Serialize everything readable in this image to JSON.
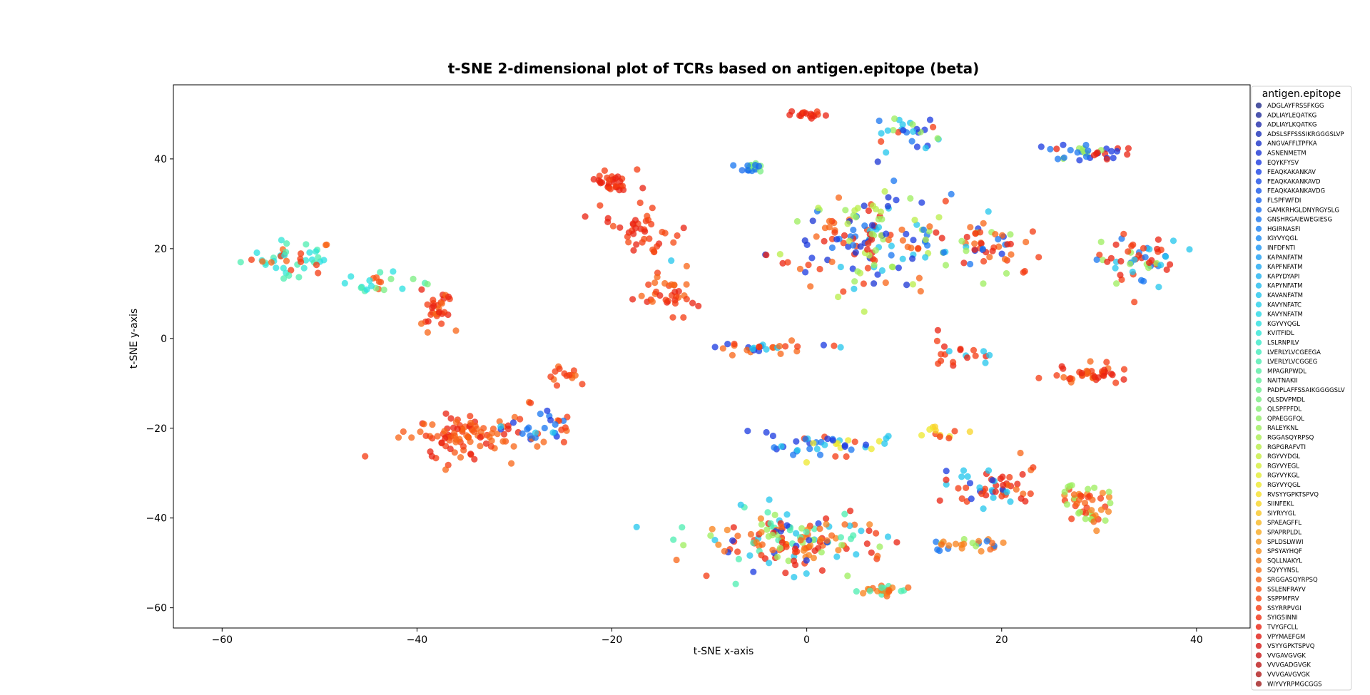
{
  "chart_data": {
    "type": "scatter",
    "title": "t-SNE 2-dimensional plot of TCRs based on antigen.epitope (beta)",
    "xlabel": "t-SNE x-axis",
    "ylabel": "t-SNE y-axis",
    "xlim": [
      -65,
      45.5
    ],
    "ylim": [
      -64.5,
      56.5
    ],
    "xticks": [
      -60,
      -40,
      -20,
      0,
      20,
      40
    ],
    "yticks": [
      -60,
      -40,
      -20,
      0,
      20,
      40
    ],
    "xtick_labels": [
      "−60",
      "−40",
      "−20",
      "0",
      "20",
      "40"
    ],
    "ytick_labels": [
      "−60",
      "−40",
      "−20",
      "0",
      "20",
      "40"
    ],
    "grid": false,
    "legend": {
      "title": "antigen.epitope",
      "placement": "outside-right",
      "entries": [
        {
          "label": "ADGLAYFRSSFKGG",
          "color": "#1f2a8a"
        },
        {
          "label": "ADLIAYLEQATKG",
          "color": "#1f2a9a"
        },
        {
          "label": "ADLIAYLKQATKG",
          "color": "#1f2aaa"
        },
        {
          "label": "ADSLSFFSSSIKRGGGSLVP",
          "color": "#1a2fb8"
        },
        {
          "label": "ANGVAFFLTPFKA",
          "color": "#1a32c8"
        },
        {
          "label": "ASNENMETM",
          "color": "#1a34d4"
        },
        {
          "label": "EQYKFYSV",
          "color": "#1a3ae0"
        },
        {
          "label": "FEAQKAKANKAV",
          "color": "#1a44e6"
        },
        {
          "label": "FEAQKAKANKAVD",
          "color": "#1a4ee8"
        },
        {
          "label": "FEAQKAKANKAVDG",
          "color": "#1858ea"
        },
        {
          "label": "FLSPFWFDI",
          "color": "#1862ec"
        },
        {
          "label": "GAMKRHGLDNYRGYSLG",
          "color": "#186cee"
        },
        {
          "label": "GNSHRGAIEWEGIESG",
          "color": "#1876f0"
        },
        {
          "label": "HGIRNASFI",
          "color": "#1880f2"
        },
        {
          "label": "IGYVYQGL",
          "color": "#188af4"
        },
        {
          "label": "INFDFNTI",
          "color": "#1894f4"
        },
        {
          "label": "KAPANFATM",
          "color": "#1a9ef4"
        },
        {
          "label": "KAPFNFATM",
          "color": "#1ca8f2"
        },
        {
          "label": "KAPYDYAPI",
          "color": "#1eb2f0"
        },
        {
          "label": "KAPYNFATM",
          "color": "#20bcee"
        },
        {
          "label": "KAVANFATM",
          "color": "#22c6ec"
        },
        {
          "label": "KAVYNFATC",
          "color": "#24d0ea"
        },
        {
          "label": "KAVYNFATM",
          "color": "#26d8e6"
        },
        {
          "label": "KGYVYQGL",
          "color": "#2ae0e0"
        },
        {
          "label": "KVITFIDL",
          "color": "#30e6d6"
        },
        {
          "label": "LSLRNPILV",
          "color": "#38eac8"
        },
        {
          "label": "LVERLYLVCGEEGA",
          "color": "#42ecbc"
        },
        {
          "label": "LVERLYLVCGGEG",
          "color": "#4ceeb0"
        },
        {
          "label": "MPAGRPWDL",
          "color": "#56eea4"
        },
        {
          "label": "NAITNAKII",
          "color": "#60ee98"
        },
        {
          "label": "PADPLAFFSSAIKGGGGSLV",
          "color": "#6cee8c"
        },
        {
          "label": "QLSDVPMDL",
          "color": "#78ee80"
        },
        {
          "label": "QLSPFPFDL",
          "color": "#84ee74"
        },
        {
          "label": "QPAEGGFQL",
          "color": "#90ee68"
        },
        {
          "label": "RALEYKNL",
          "color": "#9cee5c"
        },
        {
          "label": "RGGASQYRPSQ",
          "color": "#aaee52"
        },
        {
          "label": "RGPGRAFVTI",
          "color": "#b8ee48"
        },
        {
          "label": "RGYVYDGL",
          "color": "#c6ee40"
        },
        {
          "label": "RGYVYEGL",
          "color": "#d4ee38"
        },
        {
          "label": "RGYVYKGL",
          "color": "#e2ec32"
        },
        {
          "label": "RGYVYQGL",
          "color": "#eee82c"
        },
        {
          "label": "RVSYYGPKTSPVQ",
          "color": "#f6e028"
        },
        {
          "label": "SIINFEKL",
          "color": "#f8d426"
        },
        {
          "label": "SIYRYYGL",
          "color": "#f8c624"
        },
        {
          "label": "SPAEAGFFL",
          "color": "#f8b822"
        },
        {
          "label": "SPAPRPLDL",
          "color": "#f8aa20"
        },
        {
          "label": "SPLDSLWWI",
          "color": "#f89c1e"
        },
        {
          "label": "SPSYAYHQF",
          "color": "#f88e1c"
        },
        {
          "label": "SQLLNAKYL",
          "color": "#f8801a"
        },
        {
          "label": "SQYYYNSL",
          "color": "#f87218"
        },
        {
          "label": "SRGGASQYRPSQ",
          "color": "#f86416"
        },
        {
          "label": "SSLENFRAYV",
          "color": "#f85614"
        },
        {
          "label": "SSPPMFRV",
          "color": "#f64812"
        },
        {
          "label": "SSYRRPVGI",
          "color": "#f43a10"
        },
        {
          "label": "SYIGSINNI",
          "color": "#f02e10"
        },
        {
          "label": "TVYGFCLL",
          "color": "#ea2210"
        },
        {
          "label": "VPYMAEFGM",
          "color": "#e01a12"
        },
        {
          "label": "VSYYGPKTSPVQ",
          "color": "#d41614"
        },
        {
          "label": "VVGAVGVGK",
          "color": "#c81616"
        },
        {
          "label": "VVVGADGVGK",
          "color": "#bc1818"
        },
        {
          "label": "VVVGAVGVGK",
          "color": "#b01a1a"
        },
        {
          "label": "WIYVYRPMGCGGS",
          "color": "#a01c1c"
        }
      ]
    },
    "clusters": [
      {
        "center": [
          -53,
          18
        ],
        "spread": [
          4.5,
          3.5
        ],
        "n": 45,
        "colors": [
          "#30e6d6",
          "#4ceeb0",
          "#2ae0e0",
          "#f86416",
          "#f43a10"
        ]
      },
      {
        "center": [
          -44,
          12
        ],
        "spread": [
          3.5,
          3
        ],
        "n": 22,
        "colors": [
          "#4ceeb0",
          "#2ae0e0",
          "#78ee80",
          "#f85614"
        ]
      },
      {
        "center": [
          -38,
          6
        ],
        "spread": [
          1.8,
          3.5
        ],
        "n": 30,
        "colors": [
          "#f43a10",
          "#ea2210",
          "#f86416"
        ]
      },
      {
        "center": [
          -20,
          35
        ],
        "spread": [
          2,
          2.5
        ],
        "n": 30,
        "colors": [
          "#f43a10",
          "#ea2210"
        ]
      },
      {
        "center": [
          -17,
          24
        ],
        "spread": [
          3,
          5
        ],
        "n": 40,
        "colors": [
          "#f43a10",
          "#ea2210",
          "#f64812"
        ]
      },
      {
        "center": [
          -14,
          10
        ],
        "spread": [
          3,
          4
        ],
        "n": 35,
        "colors": [
          "#f43a10",
          "#ea2210",
          "#f86416"
        ]
      },
      {
        "center": [
          -36,
          -22
        ],
        "spread": [
          5,
          5
        ],
        "n": 95,
        "colors": [
          "#f43a10",
          "#f86416",
          "#ea2210",
          "#f85614"
        ]
      },
      {
        "center": [
          -28,
          -20
        ],
        "spread": [
          4,
          5
        ],
        "n": 35,
        "colors": [
          "#1876f0",
          "#1a3ae0",
          "#22c6ec",
          "#f43a10",
          "#f86416"
        ]
      },
      {
        "center": [
          -25,
          -8
        ],
        "spread": [
          2,
          1.5
        ],
        "n": 14,
        "colors": [
          "#f43a10",
          "#f86416"
        ]
      },
      {
        "center": [
          0,
          50
        ],
        "spread": [
          1.5,
          0.8
        ],
        "n": 16,
        "colors": [
          "#ea2210",
          "#f43a10"
        ]
      },
      {
        "center": [
          -5.5,
          38
        ],
        "spread": [
          1.3,
          1
        ],
        "n": 18,
        "colors": [
          "#1876f0",
          "#186cee",
          "#78ee80"
        ]
      },
      {
        "center": [
          6,
          22
        ],
        "spread": [
          9,
          10
        ],
        "n": 170,
        "colors": [
          "#ea2210",
          "#f43a10",
          "#1a3ae0",
          "#1876f0",
          "#9cee5c",
          "#f86416",
          "#1a34d4",
          "#22c6ec",
          "#b8ee48"
        ]
      },
      {
        "center": [
          10,
          47
        ],
        "spread": [
          3,
          3
        ],
        "n": 28,
        "colors": [
          "#1876f0",
          "#1a3ae0",
          "#22c6ec",
          "#f43a10",
          "#9cee5c"
        ]
      },
      {
        "center": [
          19,
          20
        ],
        "spread": [
          5,
          5
        ],
        "n": 45,
        "colors": [
          "#f43a10",
          "#ea2210",
          "#9cee5c",
          "#1a3ae0",
          "#1876f0",
          "#f86416"
        ]
      },
      {
        "center": [
          29,
          41.5
        ],
        "spread": [
          4,
          1.8
        ],
        "n": 35,
        "colors": [
          "#9cee5c",
          "#ea2210",
          "#1a3ae0",
          "#1876f0"
        ]
      },
      {
        "center": [
          34,
          17
        ],
        "spread": [
          4.5,
          5
        ],
        "n": 55,
        "colors": [
          "#f43a10",
          "#ea2210",
          "#9cee5c",
          "#1876f0",
          "#22c6ec"
        ]
      },
      {
        "center": [
          -4,
          -2
        ],
        "spread": [
          6,
          1.3
        ],
        "n": 30,
        "colors": [
          "#f43a10",
          "#f86416",
          "#22c6ec",
          "#1a3ae0"
        ]
      },
      {
        "center": [
          16,
          -3
        ],
        "spread": [
          3,
          2.5
        ],
        "n": 20,
        "colors": [
          "#f43a10",
          "#ea2210",
          "#22c6ec"
        ]
      },
      {
        "center": [
          29,
          -8
        ],
        "spread": [
          3,
          2
        ],
        "n": 40,
        "colors": [
          "#f43a10",
          "#f86416",
          "#ea2210"
        ]
      },
      {
        "center": [
          2,
          -24
        ],
        "spread": [
          7,
          2.5
        ],
        "n": 45,
        "colors": [
          "#1a3ae0",
          "#1876f0",
          "#f43a10",
          "#eee82c",
          "#22c6ec"
        ]
      },
      {
        "center": [
          14,
          -21
        ],
        "spread": [
          2,
          1.5
        ],
        "n": 12,
        "colors": [
          "#eee82c",
          "#f8d426",
          "#f43a10"
        ]
      },
      {
        "center": [
          -1,
          -45
        ],
        "spread": [
          9,
          6
        ],
        "n": 160,
        "colors": [
          "#ea2210",
          "#f43a10",
          "#f86416",
          "#f8801a",
          "#4ceeb0",
          "#1a3ae0",
          "#9cee5c",
          "#22c6ec"
        ]
      },
      {
        "center": [
          8,
          -56
        ],
        "spread": [
          2,
          1
        ],
        "n": 25,
        "colors": [
          "#f8801a",
          "#f86416",
          "#4ceeb0"
        ]
      },
      {
        "center": [
          19,
          -33
        ],
        "spread": [
          4,
          4
        ],
        "n": 55,
        "colors": [
          "#ea2210",
          "#f43a10",
          "#1a3ae0",
          "#f86416",
          "#22c6ec"
        ]
      },
      {
        "center": [
          16,
          -46
        ],
        "spread": [
          4,
          1.5
        ],
        "n": 25,
        "colors": [
          "#f8801a",
          "#f86416",
          "#9cee5c",
          "#1876f0"
        ]
      },
      {
        "center": [
          29,
          -37
        ],
        "spread": [
          2.5,
          4
        ],
        "n": 50,
        "colors": [
          "#f8801a",
          "#f86416",
          "#f43a10",
          "#9cee5c"
        ]
      }
    ]
  }
}
